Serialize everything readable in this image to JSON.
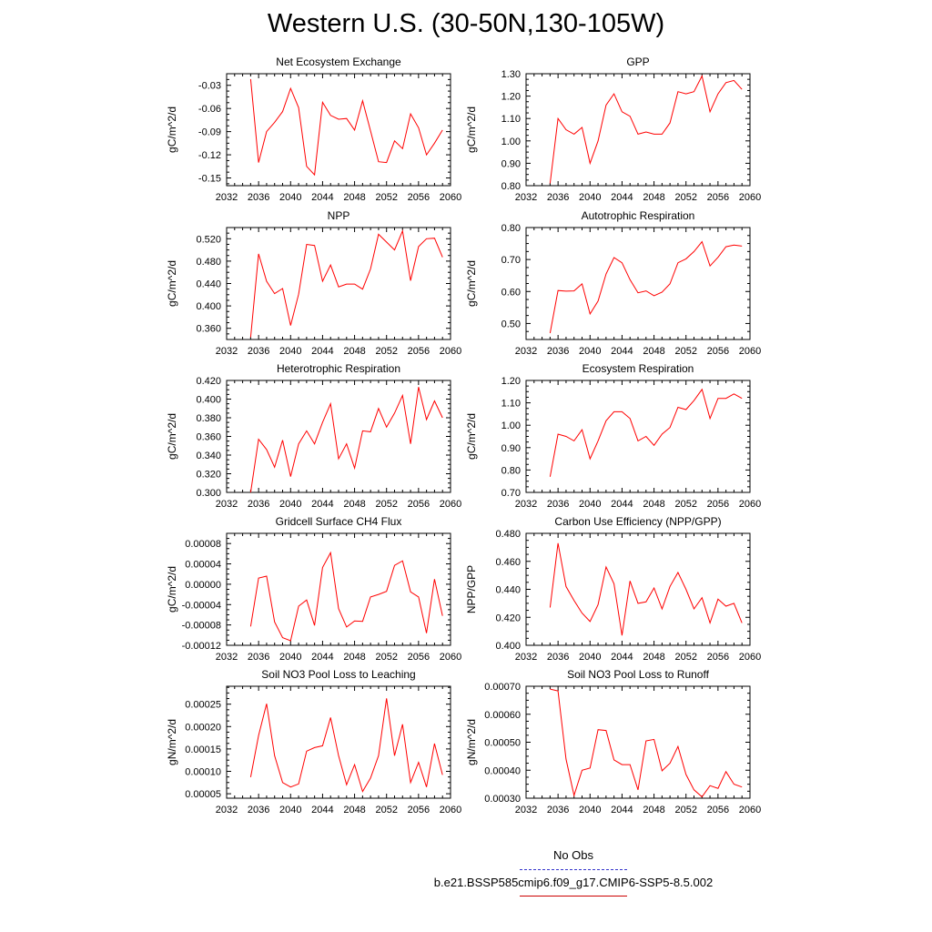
{
  "page": {
    "title": "Western U.S. (30-50N,130-105W)"
  },
  "legend": {
    "obs_label": "No Obs",
    "obs_color": "#3333cc",
    "obs_style": "dashed",
    "model_label": "b.e21.BSSP585cmip6.f09_g17.CMIP6-SSP5-8.5.002",
    "model_color": "#cc0000"
  },
  "chart_data": [
    {
      "type": "line",
      "title": "Net Ecosystem Exchange",
      "ylabel": "gC/m^2/d",
      "xlim": [
        2032,
        2060
      ],
      "x_ticks": [
        "2032",
        "2036",
        "2040",
        "2044",
        "2048",
        "2052",
        "2056",
        "2060"
      ],
      "ylim": [
        -0.16,
        -0.015
      ],
      "y_ticks": [
        {
          "v": -0.15,
          "label": "-0.15"
        },
        {
          "v": -0.12,
          "label": "-0.12"
        },
        {
          "v": -0.09,
          "label": "-0.09"
        },
        {
          "v": -0.06,
          "label": "-0.06"
        },
        {
          "v": -0.03,
          "label": "-0.03"
        }
      ],
      "series": [
        {
          "color": "#ff0000",
          "x": [
            2035,
            2036,
            2037,
            2038,
            2039,
            2040,
            2041,
            2042,
            2043,
            2044,
            2045,
            2046,
            2047,
            2048,
            2049,
            2050,
            2051,
            2052,
            2053,
            2054,
            2055,
            2056,
            2057,
            2058,
            2059
          ],
          "y": [
            -0.022,
            -0.13,
            -0.09,
            -0.078,
            -0.064,
            -0.034,
            -0.059,
            -0.135,
            -0.146,
            -0.052,
            -0.069,
            -0.074,
            -0.073,
            -0.088,
            -0.05,
            -0.089,
            -0.129,
            -0.13,
            -0.102,
            -0.112,
            -0.067,
            -0.085,
            -0.12,
            -0.105,
            -0.088
          ]
        }
      ]
    },
    {
      "type": "line",
      "title": "GPP",
      "ylabel": "gC/m^2/d",
      "xlim": [
        2032,
        2060
      ],
      "x_ticks": [
        "2032",
        "2036",
        "2040",
        "2044",
        "2048",
        "2052",
        "2056",
        "2060"
      ],
      "ylim": [
        0.8,
        1.3
      ],
      "y_ticks": [
        {
          "v": 0.8,
          "label": "0.80"
        },
        {
          "v": 0.9,
          "label": "0.90"
        },
        {
          "v": 1.0,
          "label": "1.00"
        },
        {
          "v": 1.1,
          "label": "1.10"
        },
        {
          "v": 1.2,
          "label": "1.20"
        },
        {
          "v": 1.3,
          "label": "1.30"
        }
      ],
      "series": [
        {
          "color": "#ff0000",
          "x": [
            2035,
            2036,
            2037,
            2038,
            2039,
            2040,
            2041,
            2042,
            2043,
            2044,
            2045,
            2046,
            2047,
            2048,
            2049,
            2050,
            2051,
            2052,
            2053,
            2054,
            2055,
            2056,
            2057,
            2058,
            2059
          ],
          "y": [
            0.81,
            1.1,
            1.05,
            1.03,
            1.06,
            0.9,
            1.0,
            1.16,
            1.21,
            1.13,
            1.11,
            1.03,
            1.04,
            1.03,
            1.03,
            1.08,
            1.22,
            1.21,
            1.22,
            1.29,
            1.13,
            1.21,
            1.26,
            1.27,
            1.23
          ]
        }
      ]
    },
    {
      "type": "line",
      "title": "NPP",
      "ylabel": "gC/m^2/d",
      "xlim": [
        2032,
        2060
      ],
      "x_ticks": [
        "2032",
        "2036",
        "2040",
        "2044",
        "2048",
        "2052",
        "2056",
        "2060"
      ],
      "ylim": [
        0.34,
        0.54
      ],
      "y_ticks": [
        {
          "v": 0.36,
          "label": "0.360"
        },
        {
          "v": 0.4,
          "label": "0.400"
        },
        {
          "v": 0.44,
          "label": "0.440"
        },
        {
          "v": 0.48,
          "label": "0.480"
        },
        {
          "v": 0.52,
          "label": "0.520"
        }
      ],
      "series": [
        {
          "color": "#ff0000",
          "x": [
            2035,
            2036,
            2037,
            2038,
            2039,
            2040,
            2041,
            2042,
            2043,
            2044,
            2045,
            2046,
            2047,
            2048,
            2049,
            2050,
            2051,
            2052,
            2053,
            2054,
            2055,
            2056,
            2057,
            2058,
            2059
          ],
          "y": [
            0.344,
            0.493,
            0.444,
            0.422,
            0.431,
            0.365,
            0.421,
            0.51,
            0.508,
            0.444,
            0.473,
            0.434,
            0.439,
            0.439,
            0.43,
            0.466,
            0.528,
            0.514,
            0.5,
            0.534,
            0.445,
            0.506,
            0.52,
            0.521,
            0.487
          ]
        }
      ]
    },
    {
      "type": "line",
      "title": "Autotrophic Respiration",
      "ylabel": "gC/m^2/d",
      "xlim": [
        2032,
        2060
      ],
      "x_ticks": [
        "2032",
        "2036",
        "2040",
        "2044",
        "2048",
        "2052",
        "2056",
        "2060"
      ],
      "ylim": [
        0.45,
        0.8
      ],
      "y_ticks": [
        {
          "v": 0.5,
          "label": "0.50"
        },
        {
          "v": 0.6,
          "label": "0.60"
        },
        {
          "v": 0.7,
          "label": "0.70"
        },
        {
          "v": 0.8,
          "label": "0.80"
        }
      ],
      "series": [
        {
          "color": "#ff0000",
          "x": [
            2035,
            2036,
            2037,
            2038,
            2039,
            2040,
            2041,
            2042,
            2043,
            2044,
            2045,
            2046,
            2047,
            2048,
            2049,
            2050,
            2051,
            2052,
            2053,
            2054,
            2055,
            2056,
            2057,
            2058,
            2059
          ],
          "y": [
            0.47,
            0.603,
            0.601,
            0.602,
            0.624,
            0.53,
            0.57,
            0.655,
            0.706,
            0.69,
            0.637,
            0.596,
            0.602,
            0.587,
            0.598,
            0.624,
            0.69,
            0.702,
            0.725,
            0.756,
            0.68,
            0.707,
            0.74,
            0.745,
            0.742
          ]
        }
      ]
    },
    {
      "type": "line",
      "title": "Heterotrophic Respiration",
      "ylabel": "gC/m^2/d",
      "xlim": [
        2032,
        2060
      ],
      "x_ticks": [
        "2032",
        "2036",
        "2040",
        "2044",
        "2048",
        "2052",
        "2056",
        "2060"
      ],
      "ylim": [
        0.3,
        0.42
      ],
      "y_ticks": [
        {
          "v": 0.3,
          "label": "0.300"
        },
        {
          "v": 0.32,
          "label": "0.320"
        },
        {
          "v": 0.34,
          "label": "0.340"
        },
        {
          "v": 0.36,
          "label": "0.360"
        },
        {
          "v": 0.38,
          "label": "0.380"
        },
        {
          "v": 0.4,
          "label": "0.400"
        },
        {
          "v": 0.42,
          "label": "0.420"
        }
      ],
      "series": [
        {
          "color": "#ff0000",
          "x": [
            2035,
            2036,
            2037,
            2038,
            2039,
            2040,
            2041,
            2042,
            2043,
            2044,
            2045,
            2046,
            2047,
            2048,
            2049,
            2050,
            2051,
            2052,
            2053,
            2054,
            2055,
            2056,
            2057,
            2058,
            2059
          ],
          "y": [
            0.3,
            0.357,
            0.346,
            0.327,
            0.356,
            0.317,
            0.352,
            0.366,
            0.352,
            0.375,
            0.395,
            0.336,
            0.352,
            0.326,
            0.366,
            0.365,
            0.39,
            0.37,
            0.385,
            0.404,
            0.352,
            0.413,
            0.378,
            0.398,
            0.38
          ]
        }
      ]
    },
    {
      "type": "line",
      "title": "Ecosystem Respiration",
      "ylabel": "gC/m^2/d",
      "xlim": [
        2032,
        2060
      ],
      "x_ticks": [
        "2032",
        "2036",
        "2040",
        "2044",
        "2048",
        "2052",
        "2056",
        "2060"
      ],
      "ylim": [
        0.7,
        1.2
      ],
      "y_ticks": [
        {
          "v": 0.7,
          "label": "0.70"
        },
        {
          "v": 0.8,
          "label": "0.80"
        },
        {
          "v": 0.9,
          "label": "0.90"
        },
        {
          "v": 1.0,
          "label": "1.00"
        },
        {
          "v": 1.1,
          "label": "1.10"
        },
        {
          "v": 1.2,
          "label": "1.20"
        }
      ],
      "series": [
        {
          "color": "#ff0000",
          "x": [
            2035,
            2036,
            2037,
            2038,
            2039,
            2040,
            2041,
            2042,
            2043,
            2044,
            2045,
            2046,
            2047,
            2048,
            2049,
            2050,
            2051,
            2052,
            2053,
            2054,
            2055,
            2056,
            2057,
            2058,
            2059
          ],
          "y": [
            0.77,
            0.96,
            0.95,
            0.93,
            0.98,
            0.85,
            0.93,
            1.02,
            1.06,
            1.06,
            1.03,
            0.93,
            0.95,
            0.91,
            0.96,
            0.99,
            1.08,
            1.07,
            1.11,
            1.16,
            1.03,
            1.12,
            1.12,
            1.14,
            1.12
          ]
        }
      ]
    },
    {
      "type": "line",
      "title": "Gridcell Surface CH4 Flux",
      "ylabel": "gC/m^2/d",
      "xlim": [
        2032,
        2060
      ],
      "x_ticks": [
        "2032",
        "2036",
        "2040",
        "2044",
        "2048",
        "2052",
        "2056",
        "2060"
      ],
      "ylim": [
        -0.00012,
        0.0001
      ],
      "y_ticks": [
        {
          "v": -0.00012,
          "label": "-0.00012"
        },
        {
          "v": -8e-05,
          "label": "-0.00008"
        },
        {
          "v": -4e-05,
          "label": "-0.00004"
        },
        {
          "v": 0.0,
          "label": "0.00000"
        },
        {
          "v": 4e-05,
          "label": "0.00004"
        },
        {
          "v": 8e-05,
          "label": "0.00008"
        }
      ],
      "series": [
        {
          "color": "#ff0000",
          "x": [
            2035,
            2036,
            2037,
            2038,
            2039,
            2040,
            2041,
            2042,
            2043,
            2044,
            2045,
            2046,
            2047,
            2048,
            2049,
            2050,
            2051,
            2052,
            2053,
            2054,
            2055,
            2056,
            2057,
            2058,
            2059
          ],
          "y": [
            -8.3e-05,
            1.2e-05,
            1.6e-05,
            -7.4e-05,
            -0.000105,
            -0.000111,
            -4.3e-05,
            -3.1e-05,
            -8.1e-05,
            3.3e-05,
            6.2e-05,
            -4.8e-05,
            -8.4e-05,
            -7.2e-05,
            -7.3e-05,
            -2.5e-05,
            -2e-05,
            -1.4e-05,
            3.7e-05,
            4.6e-05,
            -1.5e-05,
            -2.5e-05,
            -9.6e-05,
            1e-05,
            -6.2e-05
          ]
        }
      ]
    },
    {
      "type": "line",
      "title": "Carbon Use Efficiency (NPP/GPP)",
      "ylabel": "NPP/GPP",
      "xlim": [
        2032,
        2060
      ],
      "x_ticks": [
        "2032",
        "2036",
        "2040",
        "2044",
        "2048",
        "2052",
        "2056",
        "2060"
      ],
      "ylim": [
        0.4,
        0.48
      ],
      "y_ticks": [
        {
          "v": 0.4,
          "label": "0.400"
        },
        {
          "v": 0.42,
          "label": "0.420"
        },
        {
          "v": 0.44,
          "label": "0.440"
        },
        {
          "v": 0.46,
          "label": "0.460"
        },
        {
          "v": 0.48,
          "label": "0.480"
        }
      ],
      "series": [
        {
          "color": "#ff0000",
          "x": [
            2035,
            2036,
            2037,
            2038,
            2039,
            2040,
            2041,
            2042,
            2043,
            2044,
            2045,
            2046,
            2047,
            2048,
            2049,
            2050,
            2051,
            2052,
            2053,
            2054,
            2055,
            2056,
            2057,
            2058,
            2059
          ],
          "y": [
            0.427,
            0.473,
            0.442,
            0.432,
            0.423,
            0.417,
            0.429,
            0.456,
            0.444,
            0.407,
            0.446,
            0.43,
            0.431,
            0.441,
            0.426,
            0.442,
            0.452,
            0.44,
            0.426,
            0.434,
            0.416,
            0.433,
            0.428,
            0.43,
            0.416
          ]
        }
      ]
    },
    {
      "type": "line",
      "title": "Soil NO3 Pool Loss to Leaching",
      "ylabel": "gN/m^2/d",
      "xlim": [
        2032,
        2060
      ],
      "x_ticks": [
        "2032",
        "2036",
        "2040",
        "2044",
        "2048",
        "2052",
        "2056",
        "2060"
      ],
      "ylim": [
        4e-05,
        0.00029
      ],
      "y_ticks": [
        {
          "v": 5e-05,
          "label": "0.00005"
        },
        {
          "v": 0.0001,
          "label": "0.00010"
        },
        {
          "v": 0.00015,
          "label": "0.00015"
        },
        {
          "v": 0.0002,
          "label": "0.00020"
        },
        {
          "v": 0.00025,
          "label": "0.00025"
        }
      ],
      "series": [
        {
          "color": "#ff0000",
          "x": [
            2035,
            2036,
            2037,
            2038,
            2039,
            2040,
            2041,
            2042,
            2043,
            2044,
            2045,
            2046,
            2047,
            2048,
            2049,
            2050,
            2051,
            2052,
            2053,
            2054,
            2055,
            2056,
            2057,
            2058,
            2059
          ],
          "y": [
            8.7e-05,
            0.00018,
            0.000251,
            0.000135,
            7.5e-05,
            6.5e-05,
            7.2e-05,
            0.000145,
            0.000153,
            0.000157,
            0.00022,
            0.000135,
            7e-05,
            0.000115,
            5.5e-05,
            8.5e-05,
            0.000135,
            0.000263,
            0.000135,
            0.000205,
            7.5e-05,
            0.00012,
            6.5e-05,
            0.000162,
            9.2e-05
          ]
        }
      ]
    },
    {
      "type": "line",
      "title": "Soil NO3 Pool Loss to Runoff",
      "ylabel": "gN/m^2/d",
      "xlim": [
        2032,
        2060
      ],
      "x_ticks": [
        "2032",
        "2036",
        "2040",
        "2044",
        "2048",
        "2052",
        "2056",
        "2060"
      ],
      "ylim": [
        0.0003,
        0.0007
      ],
      "y_ticks": [
        {
          "v": 0.0003,
          "label": "0.00030"
        },
        {
          "v": 0.0004,
          "label": "0.00040"
        },
        {
          "v": 0.0005,
          "label": "0.00050"
        },
        {
          "v": 0.0006,
          "label": "0.00060"
        },
        {
          "v": 0.0007,
          "label": "0.00070"
        }
      ],
      "series": [
        {
          "color": "#ff0000",
          "x": [
            2035,
            2036,
            2037,
            2038,
            2039,
            2040,
            2041,
            2042,
            2043,
            2044,
            2045,
            2046,
            2047,
            2048,
            2049,
            2050,
            2051,
            2052,
            2053,
            2054,
            2055,
            2056,
            2057,
            2058,
            2059
          ],
          "y": [
            0.00069,
            0.000683,
            0.00044,
            0.00031,
            0.0004,
            0.000408,
            0.000545,
            0.000542,
            0.000437,
            0.00042,
            0.00042,
            0.00033,
            0.000505,
            0.00051,
            0.000398,
            0.000425,
            0.000485,
            0.000385,
            0.00033,
            0.000305,
            0.000345,
            0.000335,
            0.000395,
            0.00035,
            0.00034
          ]
        }
      ]
    }
  ]
}
